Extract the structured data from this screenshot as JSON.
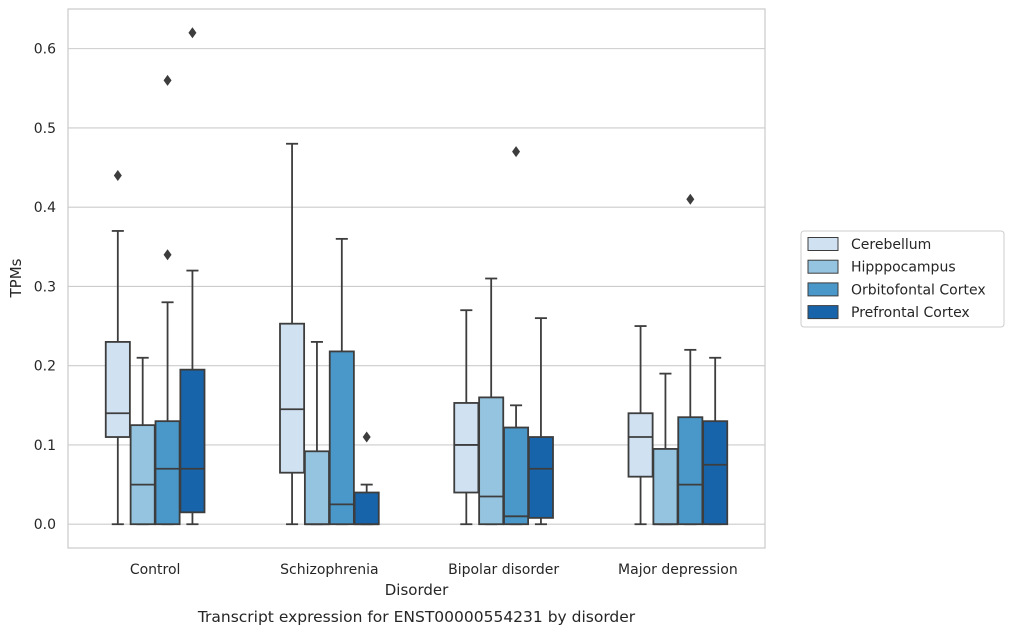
{
  "chart_data": {
    "type": "box",
    "caption": "Transcript expression for ENST00000554231 by disorder",
    "xlabel": "Disorder",
    "ylabel": "TPMs",
    "ylim": [
      -0.03,
      0.65
    ],
    "yticks": [
      "0.0",
      "0.1",
      "0.2",
      "0.3",
      "0.4",
      "0.5",
      "0.6"
    ],
    "grid": "horizontal",
    "legend_position": "right",
    "categories": [
      "Control",
      "Schizophrenia",
      "Bipolar disorder",
      "Major depression"
    ],
    "series": [
      {
        "name": "Cerebellum",
        "color": "#d0e1f2",
        "boxes": [
          {
            "whisker_low": 0.0,
            "q1": 0.11,
            "median": 0.14,
            "q3": 0.23,
            "whisker_high": 0.37,
            "outliers": [
              0.44
            ]
          },
          {
            "whisker_low": 0.0,
            "q1": 0.065,
            "median": 0.145,
            "q3": 0.253,
            "whisker_high": 0.48,
            "outliers": []
          },
          {
            "whisker_low": 0.0,
            "q1": 0.04,
            "median": 0.1,
            "q3": 0.153,
            "whisker_high": 0.27,
            "outliers": []
          },
          {
            "whisker_low": 0.0,
            "q1": 0.06,
            "median": 0.11,
            "q3": 0.14,
            "whisker_high": 0.25,
            "outliers": []
          }
        ]
      },
      {
        "name": "Hipppocampus",
        "color": "#94c4df",
        "boxes": [
          {
            "whisker_low": 0.0,
            "q1": 0.0,
            "median": 0.05,
            "q3": 0.125,
            "whisker_high": 0.21,
            "outliers": []
          },
          {
            "whisker_low": 0.0,
            "q1": 0.0,
            "median": 0.0,
            "q3": 0.092,
            "whisker_high": 0.23,
            "outliers": []
          },
          {
            "whisker_low": 0.0,
            "q1": 0.0,
            "median": 0.035,
            "q3": 0.16,
            "whisker_high": 0.31,
            "outliers": []
          },
          {
            "whisker_low": 0.0,
            "q1": 0.0,
            "median": 0.0,
            "q3": 0.095,
            "whisker_high": 0.19,
            "outliers": []
          }
        ]
      },
      {
        "name": "Orbitofontal Cortex",
        "color": "#4a98c9",
        "boxes": [
          {
            "whisker_low": 0.0,
            "q1": 0.0,
            "median": 0.07,
            "q3": 0.13,
            "whisker_high": 0.28,
            "outliers": [
              0.34,
              0.56
            ]
          },
          {
            "whisker_low": 0.0,
            "q1": 0.0,
            "median": 0.025,
            "q3": 0.218,
            "whisker_high": 0.36,
            "outliers": []
          },
          {
            "whisker_low": 0.0,
            "q1": 0.0,
            "median": 0.01,
            "q3": 0.122,
            "whisker_high": 0.15,
            "outliers": [
              0.47
            ]
          },
          {
            "whisker_low": 0.0,
            "q1": 0.0,
            "median": 0.05,
            "q3": 0.135,
            "whisker_high": 0.22,
            "outliers": [
              0.41
            ]
          }
        ]
      },
      {
        "name": "Prefrontal Cortex",
        "color": "#1764ab",
        "boxes": [
          {
            "whisker_low": 0.0,
            "q1": 0.015,
            "median": 0.07,
            "q3": 0.195,
            "whisker_high": 0.32,
            "outliers": [
              0.62
            ]
          },
          {
            "whisker_low": 0.0,
            "q1": 0.0,
            "median": 0.0,
            "q3": 0.04,
            "whisker_high": 0.05,
            "outliers": [
              0.11
            ]
          },
          {
            "whisker_low": 0.0,
            "q1": 0.008,
            "median": 0.07,
            "q3": 0.11,
            "whisker_high": 0.26,
            "outliers": []
          },
          {
            "whisker_low": 0.0,
            "q1": 0.0,
            "median": 0.075,
            "q3": 0.13,
            "whisker_high": 0.21,
            "outliers": []
          }
        ]
      }
    ]
  }
}
